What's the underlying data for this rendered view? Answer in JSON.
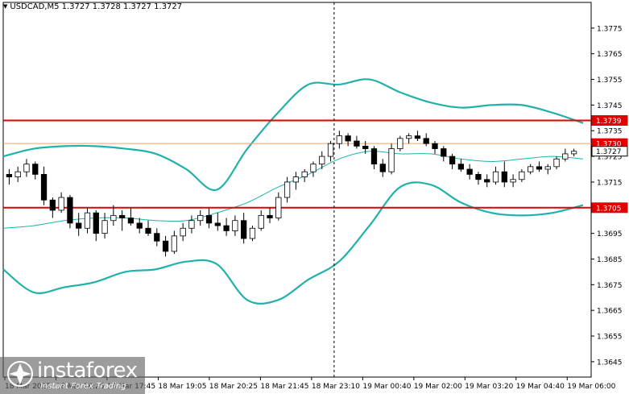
{
  "header": {
    "symbol": "USDCAD,M5",
    "ohlc": "1.3727 1.3728 1.3727 1.3727"
  },
  "branding": {
    "name": "instaforex",
    "tagline": "Instant Forex Trading"
  },
  "colors": {
    "candle": "#000000",
    "bollinger": "#20b2aa",
    "level_line": "#e00000",
    "price_line": "#f4a460",
    "label_bg": "#e00000",
    "label_text": "#ffffff",
    "grid": "#000000"
  },
  "chart_data": {
    "type": "candlestick",
    "symbol": "USDCAD",
    "timeframe": "M5",
    "ylim": [
      1.3639,
      1.3785
    ],
    "y_ticks": [
      1.3775,
      1.3765,
      1.3755,
      1.3745,
      1.3735,
      1.3725,
      1.3715,
      1.3705,
      1.3695,
      1.3685,
      1.3675,
      1.3665,
      1.3655,
      1.3645
    ],
    "x_ticks": [
      "18 Mar 2025",
      "18 Mar 16:25",
      "18 Mar 17:45",
      "18 Mar 19:05",
      "18 Mar 20:25",
      "18 Mar 21:45",
      "18 Mar 23:10",
      "19 Mar 00:40",
      "19 Mar 02:00",
      "19 Mar 03:20",
      "19 Mar 04:40",
      "19 Mar 06:00"
    ],
    "current_price": 1.3727,
    "price_labels": [
      {
        "text": "1.3739",
        "value": 1.3739,
        "style": "level"
      },
      {
        "text": "1.3730",
        "value": 1.373,
        "style": "level"
      },
      {
        "text": "1.3727",
        "value": 1.3727,
        "style": "current"
      },
      {
        "text": "1.3705",
        "value": 1.3705,
        "style": "level"
      }
    ],
    "levels": [
      {
        "value": 1.3739,
        "color": "#e00000",
        "style": "thick"
      },
      {
        "value": 1.3705,
        "color": "#e00000",
        "style": "thick"
      },
      {
        "value": 1.373,
        "color": "#f4a460",
        "style": "thin"
      }
    ],
    "session_separator": "18 Mar 23:10",
    "bollinger": {
      "upper": [
        1.3725,
        1.3728,
        1.3729,
        1.3729,
        1.3728,
        1.3726,
        1.372,
        1.3712,
        1.3728,
        1.3742,
        1.3753,
        1.3753,
        1.3755,
        1.375,
        1.3746,
        1.3744,
        1.3745,
        1.3745,
        1.3742,
        1.3738
      ],
      "middle": [
        1.3697,
        1.3698,
        1.37,
        1.3701,
        1.3701,
        1.37,
        1.37,
        1.3703,
        1.3707,
        1.3713,
        1.3718,
        1.3724,
        1.3727,
        1.3726,
        1.3726,
        1.3724,
        1.3723,
        1.3724,
        1.3725,
        1.3724
      ],
      "lower": [
        1.3681,
        1.3672,
        1.3674,
        1.3676,
        1.368,
        1.3681,
        1.3684,
        1.3683,
        1.3669,
        1.3669,
        1.3677,
        1.3684,
        1.3698,
        1.3713,
        1.3714,
        1.3707,
        1.3703,
        1.3702,
        1.3703,
        1.3706
      ]
    },
    "candles": [
      [
        1.3718,
        1.372,
        1.3714,
        1.3717
      ],
      [
        1.3717,
        1.3721,
        1.3715,
        1.3719
      ],
      [
        1.3719,
        1.3724,
        1.3717,
        1.3722
      ],
      [
        1.3722,
        1.3723,
        1.3716,
        1.3718
      ],
      [
        1.3718,
        1.3721,
        1.3706,
        1.3708
      ],
      [
        1.3708,
        1.3709,
        1.3701,
        1.3704
      ],
      [
        1.3704,
        1.3711,
        1.3703,
        1.3709
      ],
      [
        1.3709,
        1.371,
        1.3697,
        1.3699
      ],
      [
        1.3699,
        1.3703,
        1.3694,
        1.3697
      ],
      [
        1.3697,
        1.3705,
        1.3695,
        1.3703
      ],
      [
        1.3703,
        1.3704,
        1.3692,
        1.3695
      ],
      [
        1.3695,
        1.3703,
        1.3693,
        1.37
      ],
      [
        1.37,
        1.3706,
        1.3698,
        1.3702
      ],
      [
        1.3702,
        1.3704,
        1.3696,
        1.3701
      ],
      [
        1.3701,
        1.3705,
        1.3698,
        1.3699
      ],
      [
        1.3699,
        1.3701,
        1.3695,
        1.3697
      ],
      [
        1.3697,
        1.37,
        1.3694,
        1.3695
      ],
      [
        1.3695,
        1.3697,
        1.369,
        1.3692
      ],
      [
        1.3692,
        1.3694,
        1.3686,
        1.3688
      ],
      [
        1.3688,
        1.3696,
        1.3687,
        1.3694
      ],
      [
        1.3694,
        1.3699,
        1.3692,
        1.3697
      ],
      [
        1.3697,
        1.3702,
        1.3695,
        1.37
      ],
      [
        1.37,
        1.3704,
        1.3698,
        1.3702
      ],
      [
        1.3702,
        1.3705,
        1.3697,
        1.3699
      ],
      [
        1.3699,
        1.3703,
        1.3696,
        1.3698
      ],
      [
        1.3698,
        1.3701,
        1.3694,
        1.3696
      ],
      [
        1.3696,
        1.3702,
        1.3694,
        1.37
      ],
      [
        1.37,
        1.3703,
        1.3691,
        1.3693
      ],
      [
        1.3693,
        1.3698,
        1.3692,
        1.3697
      ],
      [
        1.3697,
        1.3704,
        1.3696,
        1.3702
      ],
      [
        1.3702,
        1.3705,
        1.3699,
        1.3701
      ],
      [
        1.3701,
        1.3711,
        1.37,
        1.3709
      ],
      [
        1.3709,
        1.3717,
        1.3707,
        1.3715
      ],
      [
        1.3715,
        1.3719,
        1.3712,
        1.3717
      ],
      [
        1.3717,
        1.372,
        1.3715,
        1.3719
      ],
      [
        1.3719,
        1.3723,
        1.3717,
        1.3722
      ],
      [
        1.3722,
        1.3727,
        1.372,
        1.3725
      ],
      [
        1.3725,
        1.3731,
        1.3723,
        1.373
      ],
      [
        1.373,
        1.3735,
        1.3728,
        1.3733
      ],
      [
        1.3733,
        1.3734,
        1.3729,
        1.3731
      ],
      [
        1.3731,
        1.3733,
        1.3728,
        1.3729
      ],
      [
        1.3729,
        1.3731,
        1.3726,
        1.3728
      ],
      [
        1.3728,
        1.3729,
        1.372,
        1.3722
      ],
      [
        1.3722,
        1.3724,
        1.3717,
        1.3719
      ],
      [
        1.3719,
        1.373,
        1.3718,
        1.3728
      ],
      [
        1.3728,
        1.3733,
        1.3727,
        1.3732
      ],
      [
        1.3732,
        1.3734,
        1.373,
        1.3733
      ],
      [
        1.3733,
        1.3735,
        1.3731,
        1.3732
      ],
      [
        1.3732,
        1.3734,
        1.3729,
        1.373
      ],
      [
        1.373,
        1.3731,
        1.3726,
        1.3728
      ],
      [
        1.3728,
        1.3729,
        1.3723,
        1.3725
      ],
      [
        1.3725,
        1.3726,
        1.372,
        1.3722
      ],
      [
        1.3722,
        1.3724,
        1.3719,
        1.372
      ],
      [
        1.372,
        1.3722,
        1.3716,
        1.3718
      ],
      [
        1.3718,
        1.3719,
        1.3714,
        1.3716
      ],
      [
        1.3716,
        1.3718,
        1.3713,
        1.3715
      ],
      [
        1.3715,
        1.3721,
        1.3714,
        1.3719
      ],
      [
        1.3719,
        1.3723,
        1.3713,
        1.3715
      ],
      [
        1.3715,
        1.3718,
        1.3713,
        1.3716
      ],
      [
        1.3716,
        1.372,
        1.3715,
        1.3719
      ],
      [
        1.3719,
        1.3722,
        1.3718,
        1.3721
      ],
      [
        1.3721,
        1.3723,
        1.3719,
        1.372
      ],
      [
        1.372,
        1.3722,
        1.3718,
        1.3721
      ],
      [
        1.3721,
        1.3725,
        1.372,
        1.3724
      ],
      [
        1.3724,
        1.3728,
        1.3723,
        1.3726
      ],
      [
        1.3726,
        1.3728,
        1.3725,
        1.3727
      ]
    ]
  }
}
